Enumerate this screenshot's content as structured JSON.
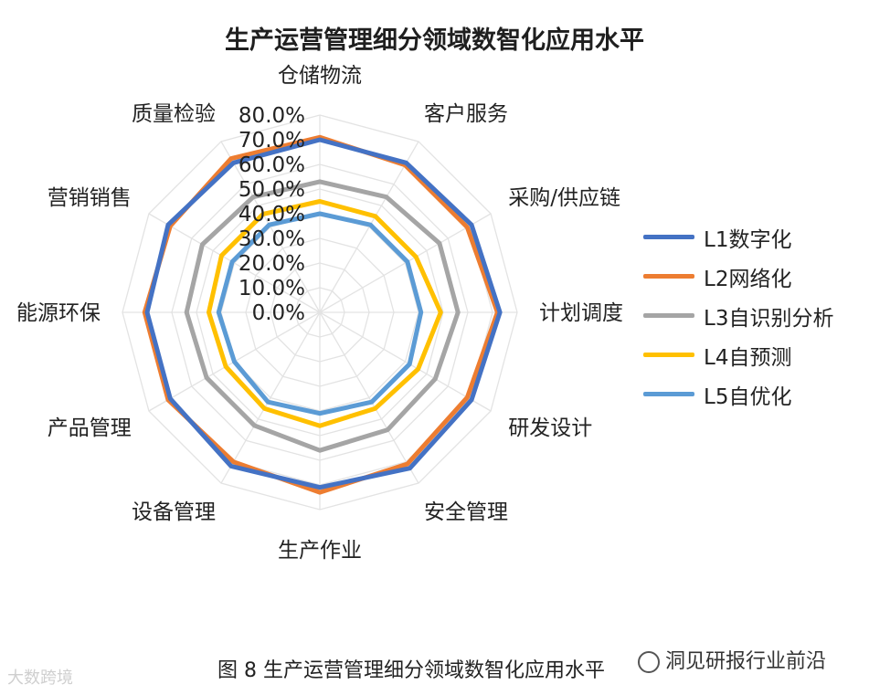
{
  "chart_data": {
    "type": "radar",
    "title": "生产运营管理细分领域数智化应用水平",
    "categories": [
      "仓储物流",
      "客户服务",
      "采购/供应链",
      "计划调度",
      "研发设计",
      "安全管理",
      "生产作业",
      "设备管理",
      "产品管理",
      "能源环保",
      "营销销售",
      "质量检验"
    ],
    "rmax": 80,
    "tick_labels": [
      "0.0%",
      "10.0%",
      "20.0%",
      "30.0%",
      "40.0%",
      "50.0%",
      "60.0%",
      "70.0%",
      "80.0%"
    ],
    "series": [
      {
        "name": "L1数字化",
        "color": "#4472C4",
        "values": [
          70,
          70,
          71,
          73,
          71,
          73,
          71,
          72,
          70,
          70,
          71,
          70
        ]
      },
      {
        "name": "L2网络化",
        "color": "#ED7D31",
        "values": [
          71,
          69,
          69,
          72,
          69,
          71,
          73,
          70,
          71,
          71,
          70,
          72
        ]
      },
      {
        "name": "L3自识别分析",
        "color": "#A5A5A5",
        "values": [
          53,
          54,
          56,
          56,
          54,
          55,
          56,
          53,
          53,
          54,
          55,
          54
        ]
      },
      {
        "name": "L4自预测",
        "color": "#FFC000",
        "values": [
          45,
          45,
          45,
          49,
          46,
          45,
          46,
          45,
          44,
          45,
          46,
          46
        ]
      },
      {
        "name": "L5自优化",
        "color": "#5B9BD5",
        "values": [
          40,
          41,
          41,
          41,
          42,
          42,
          41,
          42,
          40,
          41,
          41,
          41
        ]
      }
    ]
  },
  "caption": "图 8 生产运营管理细分领域数智化应用水平",
  "watermark_right": "洞见研报行业前沿",
  "watermark_left": "大数跨境"
}
